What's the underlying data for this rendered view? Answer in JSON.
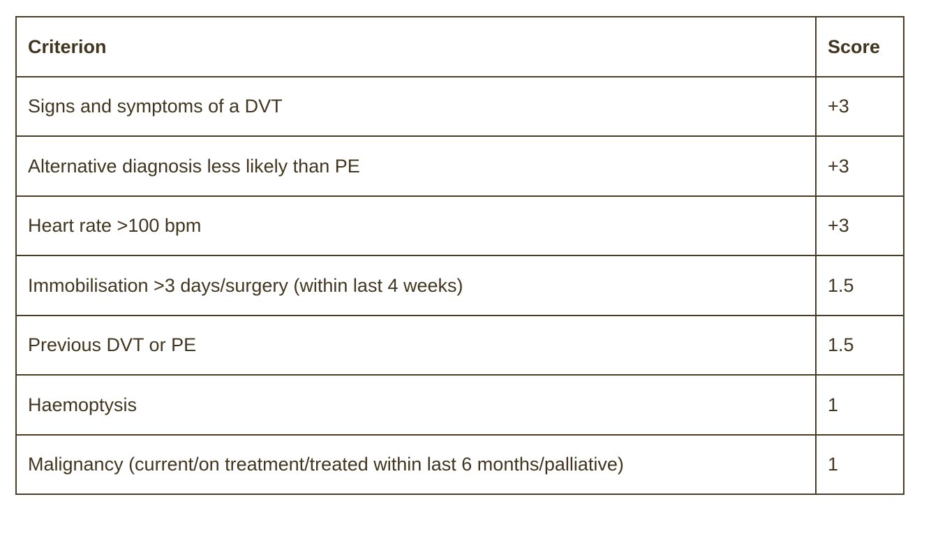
{
  "table": {
    "headers": [
      "Criterion",
      "Score"
    ],
    "rows": [
      {
        "criterion": "Signs and symptoms of a DVT",
        "score": "+3"
      },
      {
        "criterion": "Alternative diagnosis less likely than PE",
        "score": "+3"
      },
      {
        "criterion": "Heart rate >100 bpm",
        "score": "+3"
      },
      {
        "criterion": "Immobilisation >3 days/surgery (within last 4 weeks)",
        "score": "1.5"
      },
      {
        "criterion": "Previous DVT or PE",
        "score": "1.5"
      },
      {
        "criterion": "Haemoptysis",
        "score": "1"
      },
      {
        "criterion": "Malignancy (current/on treatment/treated within last 6 months/palliative)",
        "score": "1"
      }
    ],
    "colors": {
      "text": "#42351f",
      "border": "#4b3c26",
      "background": "#ffffff"
    }
  }
}
